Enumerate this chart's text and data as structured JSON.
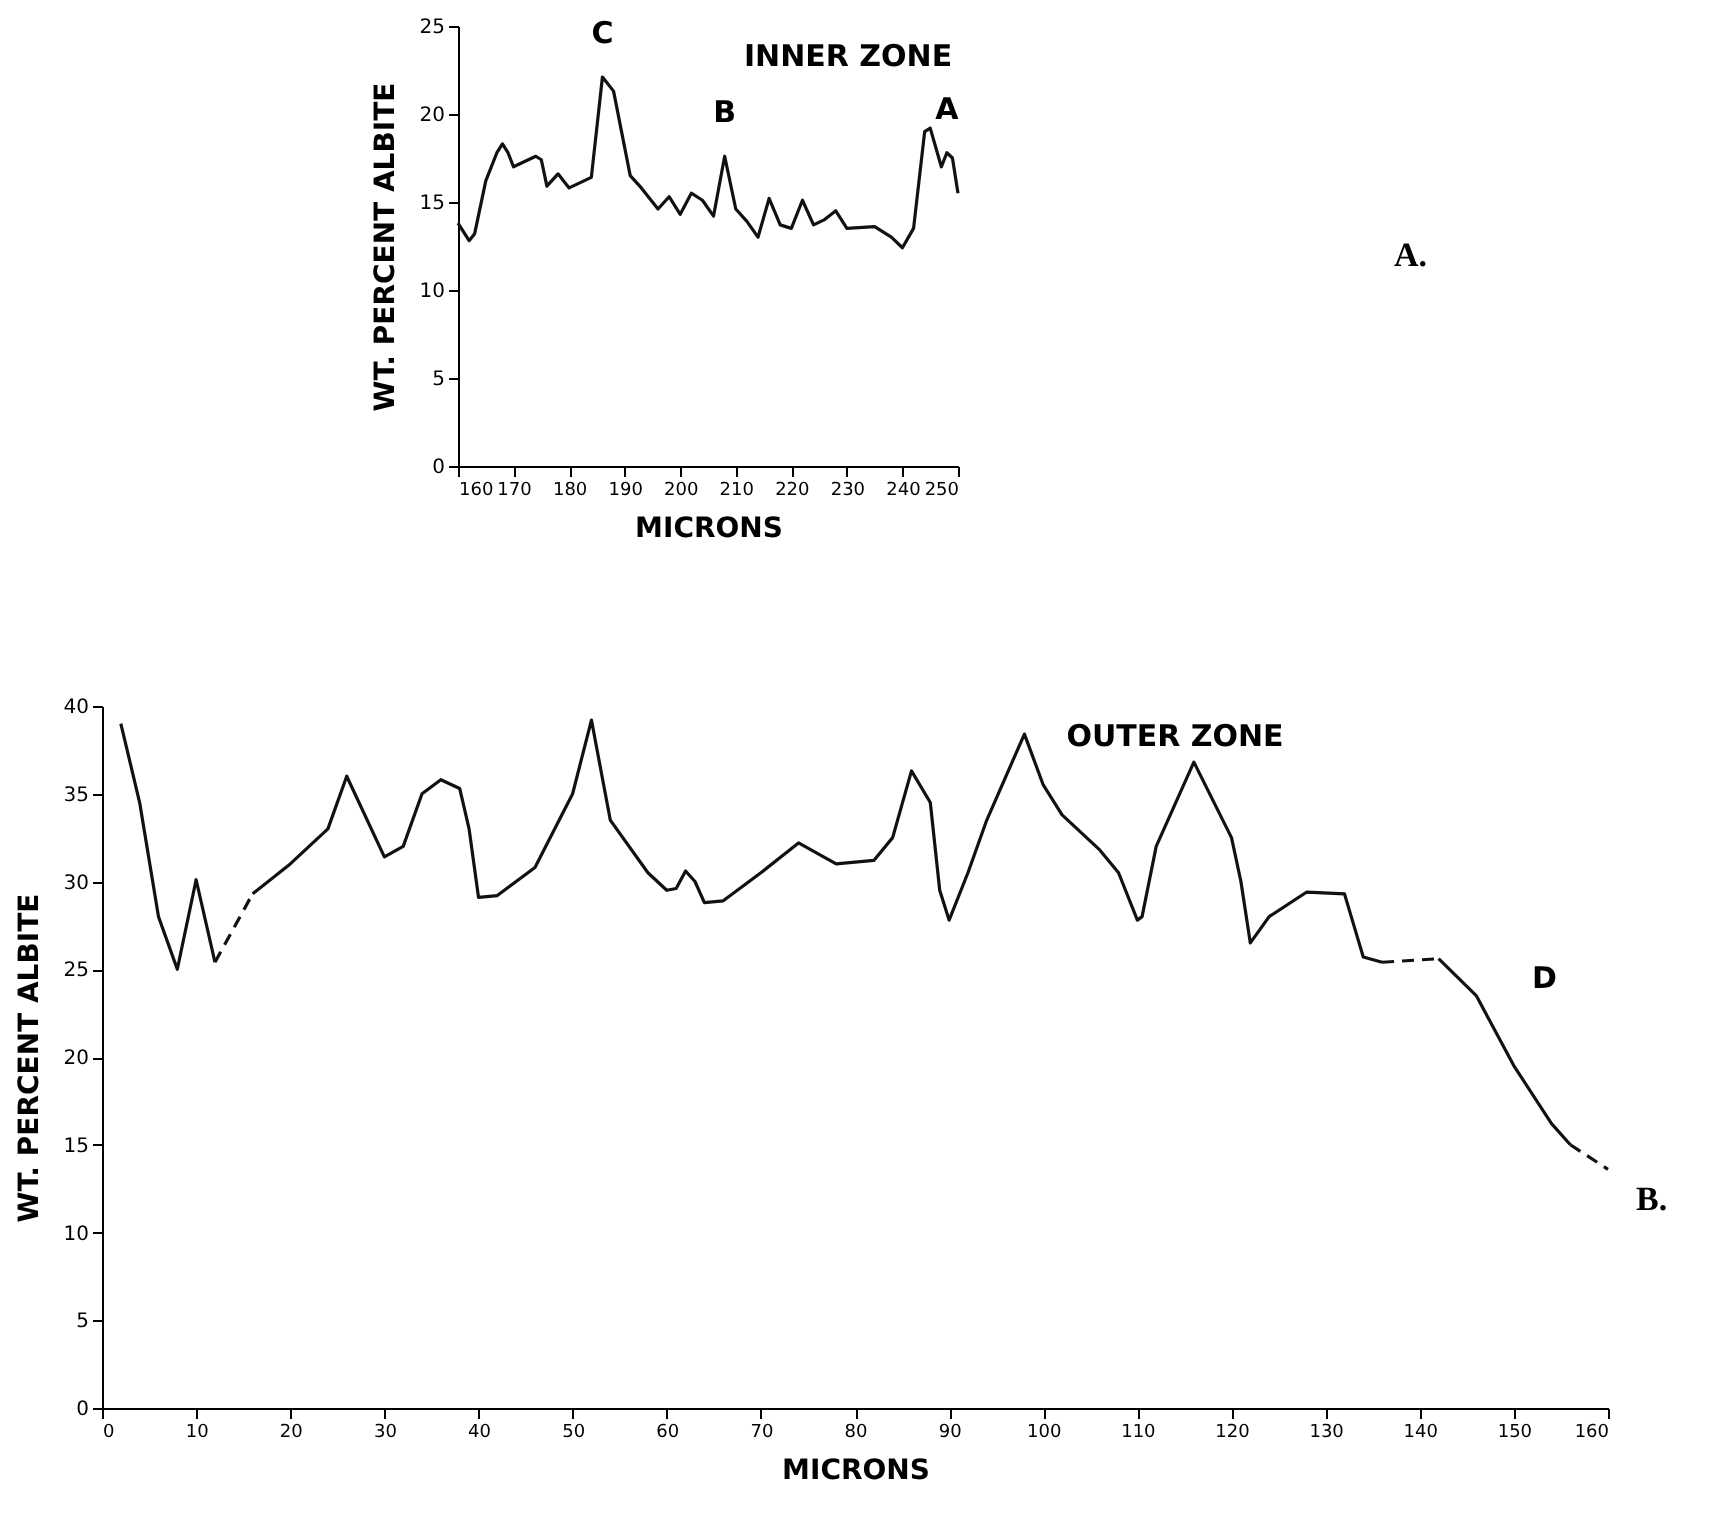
{
  "chart_data": [
    {
      "type": "line",
      "title": "INNER ZONE",
      "xlabel": "MICRONS",
      "ylabel": "WT. PERCENT ALBITE",
      "xlim": [
        160,
        250
      ],
      "xticks": [
        160,
        170,
        180,
        190,
        200,
        210,
        220,
        230,
        240,
        250
      ],
      "ylim": [
        0,
        25
      ],
      "yticks": [
        0,
        5,
        10,
        15,
        20,
        25
      ],
      "line_style": "solid",
      "series": [
        {
          "color": "#111111",
          "x": [
            160,
            162,
            163,
            165,
            167,
            168,
            169,
            170,
            172,
            174,
            175,
            176,
            178,
            180,
            182,
            184,
            186,
            188,
            191,
            193,
            196,
            198,
            200,
            202,
            204,
            206,
            208,
            210,
            212,
            214,
            216,
            218,
            220,
            222,
            224,
            226,
            228,
            230,
            235,
            238,
            240,
            242,
            244,
            245,
            247,
            248,
            249,
            250
          ],
          "values": [
            13.8,
            12.8,
            13.2,
            16.2,
            17.8,
            18.3,
            17.8,
            17.0,
            17.3,
            17.6,
            17.4,
            15.9,
            16.6,
            15.8,
            16.1,
            16.4,
            22.1,
            21.3,
            16.5,
            15.8,
            14.6,
            15.3,
            14.3,
            15.5,
            15.1,
            14.2,
            17.6,
            14.6,
            13.9,
            13.0,
            15.2,
            13.7,
            13.5,
            15.1,
            13.7,
            14.0,
            14.5,
            13.5,
            13.6,
            13.0,
            12.4,
            13.5,
            19.0,
            19.2,
            17.0,
            17.8,
            17.5,
            15.5
          ]
        }
      ],
      "annotations": [
        {
          "text": "C",
          "x": 186,
          "y": 22.1
        },
        {
          "text": "B",
          "x": 208,
          "y": 17.6
        },
        {
          "text": "A",
          "x": 248,
          "y": 17.8
        },
        "A."
      ]
    },
    {
      "type": "line",
      "title": "OUTER ZONE",
      "xlabel": "MICRONS",
      "ylabel": "WT. PERCENT ALBITE",
      "xlim": [
        0,
        160
      ],
      "xticks": [
        0,
        10,
        20,
        30,
        40,
        50,
        60,
        70,
        80,
        90,
        100,
        110,
        120,
        130,
        140,
        150,
        160
      ],
      "ylim": [
        0,
        40
      ],
      "yticks": [
        0,
        5,
        10,
        15,
        20,
        25,
        30,
        35,
        40
      ],
      "series": [
        {
          "color": "#111111",
          "line_style": "solid",
          "x": [
            2,
            4,
            6,
            8,
            10,
            12
          ],
          "values": [
            39,
            34.5,
            28,
            25,
            30.1,
            25.4
          ]
        },
        {
          "color": "#111111",
          "line_style": "dashed",
          "x": [
            12,
            16
          ],
          "values": [
            25.4,
            29.3
          ]
        },
        {
          "color": "#111111",
          "line_style": "solid",
          "x": [
            16,
            20,
            24,
            26,
            30,
            32,
            34,
            36,
            38,
            39,
            40,
            42,
            46,
            50,
            52,
            54,
            58,
            60,
            61,
            62,
            63,
            64,
            66,
            70,
            74,
            78,
            82,
            84,
            86,
            88,
            89,
            90,
            92,
            94,
            98,
            100,
            102,
            106,
            108,
            110,
            110.5,
            112,
            116,
            120,
            121,
            122,
            124,
            128,
            132,
            133,
            134,
            136
          ],
          "values": [
            29.3,
            31,
            33,
            36,
            31.4,
            32,
            35,
            35.8,
            35.3,
            33,
            29.1,
            29.2,
            30.8,
            35,
            39.2,
            33.5,
            30.5,
            29.5,
            29.6,
            30.6,
            30,
            28.8,
            28.9,
            30.5,
            32.2,
            31,
            31.2,
            32.5,
            36.3,
            34.5,
            29.5,
            27.8,
            30.5,
            33.5,
            38.4,
            35.5,
            33.8,
            31.8,
            30.5,
            27.8,
            28,
            32,
            36.8,
            32.5,
            30,
            26.5,
            28,
            29.4,
            29.3,
            27.5,
            25.7,
            25.4
          ]
        },
        {
          "color": "#111111",
          "line_style": "dashed",
          "x": [
            136,
            142
          ],
          "values": [
            25.4,
            25.6
          ]
        },
        {
          "color": "#111111",
          "line_style": "solid",
          "x": [
            142,
            146,
            150,
            154,
            156
          ],
          "values": [
            25.6,
            23.5,
            19.5,
            16.2,
            15
          ]
        },
        {
          "color": "#111111",
          "line_style": "dashed",
          "x": [
            156,
            160
          ],
          "values": [
            15,
            13.6
          ]
        }
      ],
      "annotations": [
        "D",
        "B."
      ]
    }
  ]
}
